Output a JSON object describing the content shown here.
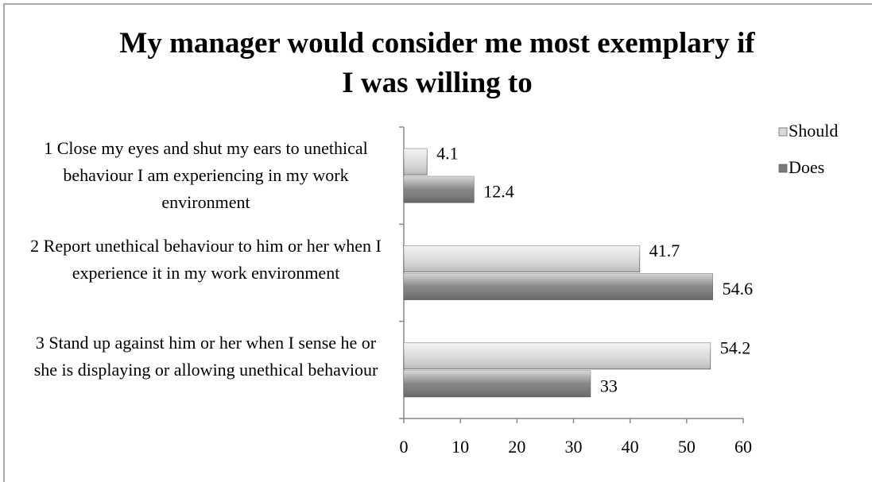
{
  "chart_data": {
    "type": "bar",
    "orientation": "horizontal",
    "title": "My manager would consider me most exemplary if I was willing to",
    "categories": [
      "1 Close my eyes and shut my ears to unethical behaviour I am experiencing in my work environment",
      "2 Report unethical behaviour to him or her when I experience it in my work environment",
      "3 Stand up against him or her when I sense he or she is displaying or allowing unethical behaviour"
    ],
    "series": [
      {
        "name": "Should",
        "color": "#d9d9d9",
        "values": [
          4.1,
          41.7,
          54.2
        ]
      },
      {
        "name": "Does",
        "color": "#7a7a7a",
        "values": [
          12.4,
          54.6,
          33
        ]
      }
    ],
    "xlim": [
      0,
      60
    ],
    "xticks": [
      0,
      10,
      20,
      30,
      40,
      50,
      60
    ],
    "legend": "right",
    "grid": false
  }
}
